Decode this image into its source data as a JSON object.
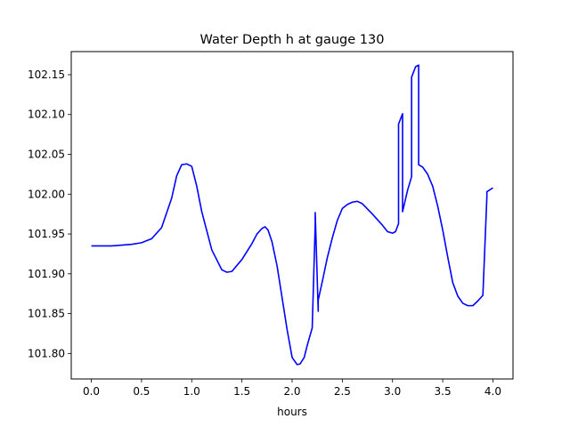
{
  "chart_data": {
    "type": "line",
    "title": "Water Depth h at gauge 130",
    "xlabel": "hours",
    "ylabel": "",
    "xlim": [
      -0.2,
      4.2
    ],
    "ylim": [
      101.768,
      102.179
    ],
    "xticks": [
      0.0,
      0.5,
      1.0,
      1.5,
      2.0,
      2.5,
      3.0,
      3.5,
      4.0
    ],
    "xtick_labels": [
      "0.0",
      "0.5",
      "1.0",
      "1.5",
      "2.0",
      "2.5",
      "3.0",
      "3.5",
      "4.0"
    ],
    "yticks": [
      101.8,
      101.85,
      101.9,
      101.95,
      102.0,
      102.05,
      102.1,
      102.15
    ],
    "ytick_labels": [
      "101.80",
      "101.85",
      "101.90",
      "101.95",
      "102.00",
      "102.05",
      "102.10",
      "102.15"
    ],
    "grid": false,
    "series": [
      {
        "color": "#0000ff",
        "x": [
          0.0,
          0.2,
          0.4,
          0.5,
          0.6,
          0.7,
          0.8,
          0.85,
          0.9,
          0.95,
          1.0,
          1.05,
          1.1,
          1.2,
          1.3,
          1.35,
          1.4,
          1.5,
          1.6,
          1.65,
          1.7,
          1.73,
          1.76,
          1.8,
          1.85,
          1.9,
          1.95,
          2.0,
          2.05,
          2.08,
          2.12,
          2.15,
          2.2,
          2.23,
          2.23,
          2.26,
          2.26,
          2.3,
          2.35,
          2.4,
          2.45,
          2.5,
          2.55,
          2.6,
          2.65,
          2.7,
          2.8,
          2.9,
          2.95,
          3.0,
          3.03,
          3.06,
          3.06,
          3.1,
          3.1,
          3.15,
          3.19,
          3.19,
          3.23,
          3.26,
          3.26,
          3.3,
          3.35,
          3.4,
          3.45,
          3.5,
          3.55,
          3.6,
          3.65,
          3.7,
          3.75,
          3.8,
          3.85,
          3.9,
          3.94,
          3.94,
          4.0
        ],
        "y": [
          101.935,
          101.935,
          101.937,
          101.939,
          101.944,
          101.958,
          101.995,
          102.023,
          102.037,
          102.038,
          102.035,
          102.01,
          101.978,
          101.93,
          101.905,
          101.902,
          101.903,
          101.918,
          101.938,
          101.95,
          101.957,
          101.959,
          101.955,
          101.94,
          101.91,
          101.87,
          101.83,
          101.795,
          101.786,
          101.787,
          101.795,
          101.81,
          101.832,
          101.962,
          101.977,
          101.853,
          101.867,
          101.89,
          101.92,
          101.945,
          101.967,
          101.982,
          101.987,
          101.99,
          101.991,
          101.988,
          101.975,
          101.961,
          101.953,
          101.951,
          101.953,
          101.963,
          102.088,
          102.101,
          101.978,
          102.005,
          102.022,
          102.147,
          102.16,
          102.162,
          102.037,
          102.034,
          102.025,
          102.01,
          101.985,
          101.955,
          101.921,
          101.889,
          101.872,
          101.863,
          101.86,
          101.86,
          101.866,
          101.873,
          101.997,
          102.003,
          102.008
        ]
      }
    ]
  }
}
